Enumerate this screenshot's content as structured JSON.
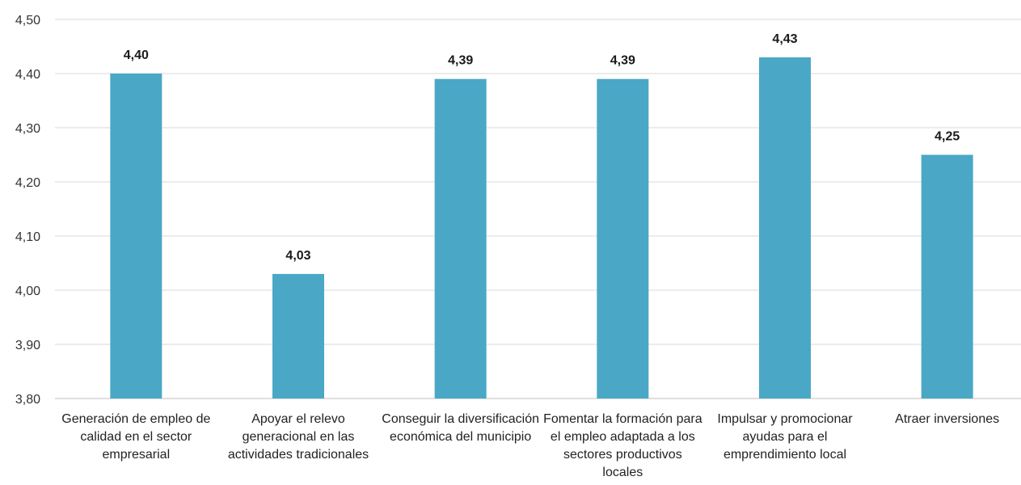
{
  "chart_data": {
    "type": "bar",
    "title": "",
    "xlabel": "",
    "ylabel": "",
    "categories": [
      "Generación de empleo de calidad en el sector empresarial",
      "Apoyar el relevo generacional en las actividades tradicionales",
      "Conseguir la diversificación económica del municipio",
      "Fomentar la formación para el empleo adaptada a los sectores productivos locales",
      "Impulsar y promocionar ayudas para el emprendimiento local",
      "Atraer inversiones"
    ],
    "values": [
      4.4,
      4.03,
      4.39,
      4.39,
      4.43,
      4.25
    ],
    "value_labels": [
      "4,40",
      "4,03",
      "4,39",
      "4,39",
      "4,43",
      "4,25"
    ],
    "ylim": [
      3.8,
      4.5
    ],
    "yticks": [
      3.8,
      3.9,
      4.0,
      4.1,
      4.2,
      4.3,
      4.4,
      4.5
    ],
    "ytick_labels": [
      "3,80",
      "3,90",
      "4,00",
      "4,10",
      "4,20",
      "4,30",
      "4,40",
      "4,50"
    ],
    "grid": true,
    "legend": "none",
    "colors": {
      "bar": "#4aa8c6",
      "grid": "#d9d9d9",
      "axis": "#bfbfbf"
    }
  }
}
